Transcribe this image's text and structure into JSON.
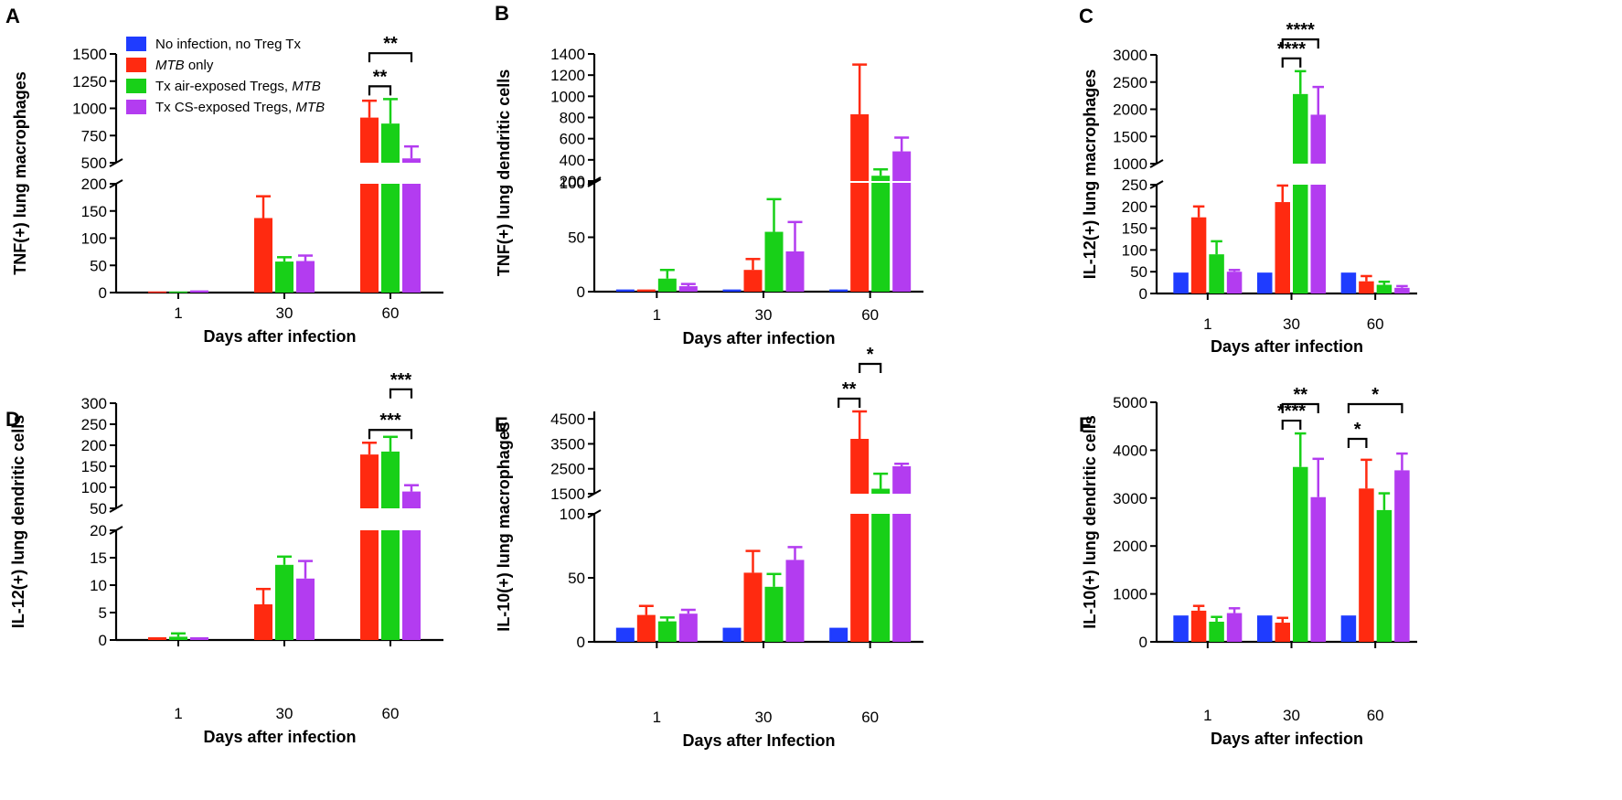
{
  "figure_colors": {
    "text": "#000000",
    "background": "#ffffff"
  },
  "legend": [
    {
      "label": "No infection, no Treg Tx",
      "color": "#1f3cff"
    },
    {
      "label_italic": "MTB",
      "label_rest": " only",
      "color": "#ff2a10"
    },
    {
      "label_rest": "Tx air-exposed Tregs, ",
      "label_italic": "MTB",
      "color": "#18d018"
    },
    {
      "label_rest": "Tx CS-exposed Tregs, ",
      "label_italic": "MTB",
      "color": "#b33cf0"
    }
  ],
  "chart_data": [
    {
      "panel": "A",
      "type": "bar",
      "ylabel": "TNF(+) lung macrophages",
      "xlabel": "Days after infection",
      "categories": [
        "1",
        "30",
        "60"
      ],
      "series_colors": [
        "#ff2a10",
        "#18d018",
        "#b33cf0"
      ],
      "series": [
        {
          "name": "MTB only",
          "values": [
            2,
            137,
            915
          ],
          "errors": [
            0,
            40,
            155
          ]
        },
        {
          "name": "Tx air-exposed Tregs, MTB",
          "values": [
            2,
            57,
            860
          ],
          "errors": [
            0,
            8,
            225
          ]
        },
        {
          "name": "Tx CS-exposed Tregs, MTB",
          "values": [
            4,
            58,
            540
          ],
          "errors": [
            0,
            10,
            110
          ]
        }
      ],
      "y_segments": [
        {
          "range": [
            0,
            200
          ],
          "ticks": [
            "0",
            "50",
            "100",
            "150",
            "200"
          ],
          "tick_values": [
            0,
            50,
            100,
            150,
            200
          ]
        },
        {
          "range": [
            500,
            1500
          ],
          "ticks": [
            "500",
            "750",
            "1000",
            "1250",
            "1500"
          ],
          "tick_values": [
            500,
            750,
            1000,
            1250,
            1500
          ]
        }
      ],
      "significance": [
        {
          "label": "**",
          "group": 2,
          "from": 0,
          "to": 1
        },
        {
          "label": "**",
          "group": 2,
          "from": 0,
          "to": 2
        }
      ]
    },
    {
      "panel": "B",
      "type": "bar",
      "ylabel": "TNF(+) lung dendritic cells",
      "xlabel": "Days after infection",
      "categories": [
        "1",
        "30",
        "60"
      ],
      "series_colors": [
        "#1f3cff",
        "#ff2a10",
        "#18d018",
        "#b33cf0"
      ],
      "series": [
        {
          "name": "No infection, no Treg Tx",
          "values": [
            2,
            2,
            2
          ],
          "errors": [
            0,
            0,
            0
          ]
        },
        {
          "name": "MTB only",
          "values": [
            2,
            20,
            830
          ],
          "errors": [
            0,
            10,
            470
          ]
        },
        {
          "name": "Tx air-exposed Tregs, MTB",
          "values": [
            12,
            55,
            250
          ],
          "errors": [
            8,
            30,
            60
          ]
        },
        {
          "name": "Tx CS-exposed Tregs, MTB",
          "values": [
            5,
            37,
            480
          ],
          "errors": [
            2,
            27,
            130
          ]
        }
      ],
      "y_segments": [
        {
          "range": [
            0,
            100
          ],
          "ticks": [
            "0",
            "50",
            "100"
          ],
          "tick_values": [
            0,
            50,
            100
          ]
        },
        {
          "range": [
            200,
            1400
          ],
          "ticks": [
            "200",
            "400",
            "600",
            "800",
            "1000",
            "1200",
            "1400"
          ],
          "tick_values": [
            200,
            400,
            600,
            800,
            1000,
            1200,
            1400
          ]
        }
      ],
      "significance": []
    },
    {
      "panel": "C",
      "type": "bar",
      "ylabel": "IL-12(+) lung macrophages",
      "xlabel": "Days after infection",
      "categories": [
        "1",
        "30",
        "60"
      ],
      "series_colors": [
        "#1f3cff",
        "#ff2a10",
        "#18d018",
        "#b33cf0"
      ],
      "series": [
        {
          "name": "No infection, no Treg Tx",
          "values": [
            48,
            48,
            48
          ],
          "errors": [
            0,
            0,
            0
          ]
        },
        {
          "name": "MTB only",
          "values": [
            175,
            210,
            28
          ],
          "errors": [
            25,
            38,
            12
          ]
        },
        {
          "name": "Tx air-exposed Tregs, MTB",
          "values": [
            90,
            2280,
            20
          ],
          "errors": [
            30,
            420,
            7
          ]
        },
        {
          "name": "Tx CS-exposed Tregs, MTB",
          "values": [
            50,
            1900,
            13
          ],
          "errors": [
            4,
            510,
            4
          ]
        }
      ],
      "y_segments": [
        {
          "range": [
            0,
            250
          ],
          "ticks": [
            "0",
            "50",
            "100",
            "150",
            "200",
            "250"
          ],
          "tick_values": [
            0,
            50,
            100,
            150,
            200,
            250
          ]
        },
        {
          "range": [
            1000,
            3000
          ],
          "ticks": [
            "1000",
            "1500",
            "2000",
            "2500",
            "3000"
          ],
          "tick_values": [
            1000,
            1500,
            2000,
            2500,
            3000
          ]
        }
      ],
      "significance": [
        {
          "label": "****",
          "group": 1,
          "from": 1,
          "to": 2
        },
        {
          "label": "****",
          "group": 1,
          "from": 1,
          "to": 3
        }
      ]
    },
    {
      "panel": "D",
      "type": "bar",
      "ylabel": "IL-12(+) lung dendritic cells",
      "xlabel": "Days after infection",
      "categories": [
        "1",
        "30",
        "60"
      ],
      "series_colors": [
        "#ff2a10",
        "#18d018",
        "#b33cf0"
      ],
      "series": [
        {
          "name": "MTB only",
          "values": [
            0.5,
            6.5,
            178
          ],
          "errors": [
            0,
            2.8,
            28
          ]
        },
        {
          "name": "Tx air-exposed Tregs, MTB",
          "values": [
            0.6,
            13.7,
            185
          ],
          "errors": [
            0.6,
            1.5,
            35
          ]
        },
        {
          "name": "Tx CS-exposed Tregs, MTB",
          "values": [
            0.5,
            11.2,
            90
          ],
          "errors": [
            0,
            3.2,
            15
          ]
        }
      ],
      "y_segments": [
        {
          "range": [
            0,
            20
          ],
          "ticks": [
            "0",
            "5",
            "10",
            "15",
            "20"
          ],
          "tick_values": [
            0,
            5,
            10,
            15,
            20
          ]
        },
        {
          "range": [
            50,
            300
          ],
          "ticks": [
            "50",
            "100",
            "150",
            "200",
            "250",
            "300"
          ],
          "tick_values": [
            50,
            100,
            150,
            200,
            250,
            300
          ]
        }
      ],
      "significance": [
        {
          "label": "***",
          "group": 2,
          "from": 0,
          "to": 2
        },
        {
          "label": "***",
          "group": 2,
          "from": 1,
          "to": 2
        }
      ]
    },
    {
      "panel": "E",
      "type": "bar",
      "ylabel": "IL-10(+) lung macrophages",
      "xlabel": "Days after Infection",
      "categories": [
        "1",
        "30",
        "60"
      ],
      "series_colors": [
        "#1f3cff",
        "#ff2a10",
        "#18d018",
        "#b33cf0"
      ],
      "series": [
        {
          "name": "No infection, no Treg Tx",
          "values": [
            11,
            11,
            11
          ],
          "errors": [
            0,
            0,
            0
          ]
        },
        {
          "name": "MTB only",
          "values": [
            21,
            54,
            3700
          ],
          "errors": [
            7,
            17,
            1100
          ]
        },
        {
          "name": "Tx air-exposed Tregs, MTB",
          "values": [
            16,
            43,
            1700
          ],
          "errors": [
            3,
            10,
            600
          ]
        },
        {
          "name": "Tx CS-exposed Tregs, MTB",
          "values": [
            22,
            64,
            2600
          ],
          "errors": [
            3,
            10,
            100
          ]
        }
      ],
      "y_segments": [
        {
          "range": [
            0,
            100
          ],
          "ticks": [
            "0",
            "50",
            "100"
          ],
          "tick_values": [
            0,
            50,
            100
          ]
        },
        {
          "range": [
            1500,
            4800
          ],
          "ticks": [
            "1500",
            "2500",
            "3500",
            "4500"
          ],
          "tick_values": [
            1500,
            2500,
            3500,
            4500
          ]
        }
      ],
      "significance": [
        {
          "label": "**",
          "group": 2,
          "from": 0,
          "to": 1
        },
        {
          "label": "*",
          "group": 2,
          "from": 1,
          "to": 2
        }
      ]
    },
    {
      "panel": "F",
      "type": "bar",
      "ylabel": "IL-10(+) lung dendritic cells",
      "xlabel": "Days after infection",
      "categories": [
        "1",
        "30",
        "60"
      ],
      "series_colors": [
        "#1f3cff",
        "#ff2a10",
        "#18d018",
        "#b33cf0"
      ],
      "series": [
        {
          "name": "No infection, no Treg Tx",
          "values": [
            550,
            550,
            550
          ],
          "errors": [
            0,
            0,
            0
          ]
        },
        {
          "name": "MTB only",
          "values": [
            650,
            400,
            3200
          ],
          "errors": [
            100,
            100,
            600
          ]
        },
        {
          "name": "Tx air-exposed Tregs, MTB",
          "values": [
            420,
            3650,
            2750
          ],
          "errors": [
            100,
            700,
            350
          ]
        },
        {
          "name": "Tx CS-exposed Tregs, MTB",
          "values": [
            600,
            3020,
            3580
          ],
          "errors": [
            100,
            800,
            350
          ]
        }
      ],
      "y_segments": [
        {
          "range": [
            0,
            5000
          ],
          "ticks": [
            "0",
            "1000",
            "2000",
            "3000",
            "4000",
            "5000"
          ],
          "tick_values": [
            0,
            1000,
            2000,
            3000,
            4000,
            5000
          ]
        }
      ],
      "significance": [
        {
          "label": "****",
          "group": 1,
          "from": 1,
          "to": 2
        },
        {
          "label": "**",
          "group": 1,
          "from": 1,
          "to": 3
        },
        {
          "label": "*",
          "group": 2,
          "from": 0,
          "to": 1
        },
        {
          "label": "*",
          "group": 2,
          "from": 0,
          "to": 3
        }
      ]
    }
  ]
}
